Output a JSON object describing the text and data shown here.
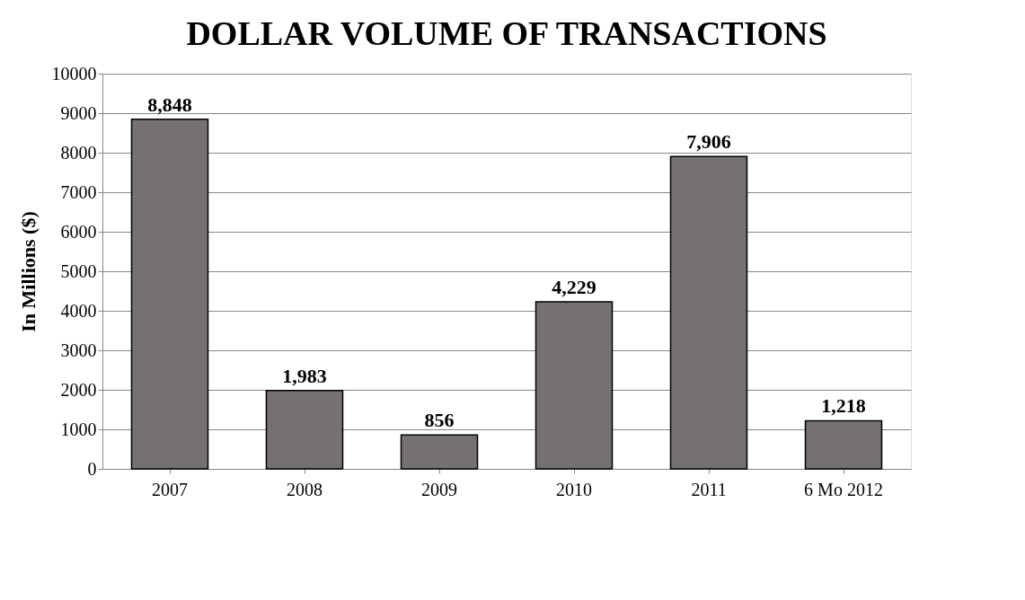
{
  "chart_data": {
    "type": "bar",
    "title": "DOLLAR VOLUME OF TRANSACTIONS",
    "ylabel": "In Millions ($)",
    "categories": [
      "2007",
      "2008",
      "2009",
      "2010",
      "2011",
      "6 Mo 2012"
    ],
    "values": [
      8848,
      1983,
      856,
      4229,
      7906,
      1218
    ],
    "value_labels": [
      "8,848",
      "1,983",
      "856",
      "4,229",
      "7,906",
      "1,218"
    ],
    "color": "#767171",
    "ylim": [
      0,
      10000
    ],
    "yticks": [
      0,
      1000,
      2000,
      3000,
      4000,
      5000,
      6000,
      7000,
      8000,
      9000,
      10000
    ],
    "grid": "y"
  }
}
